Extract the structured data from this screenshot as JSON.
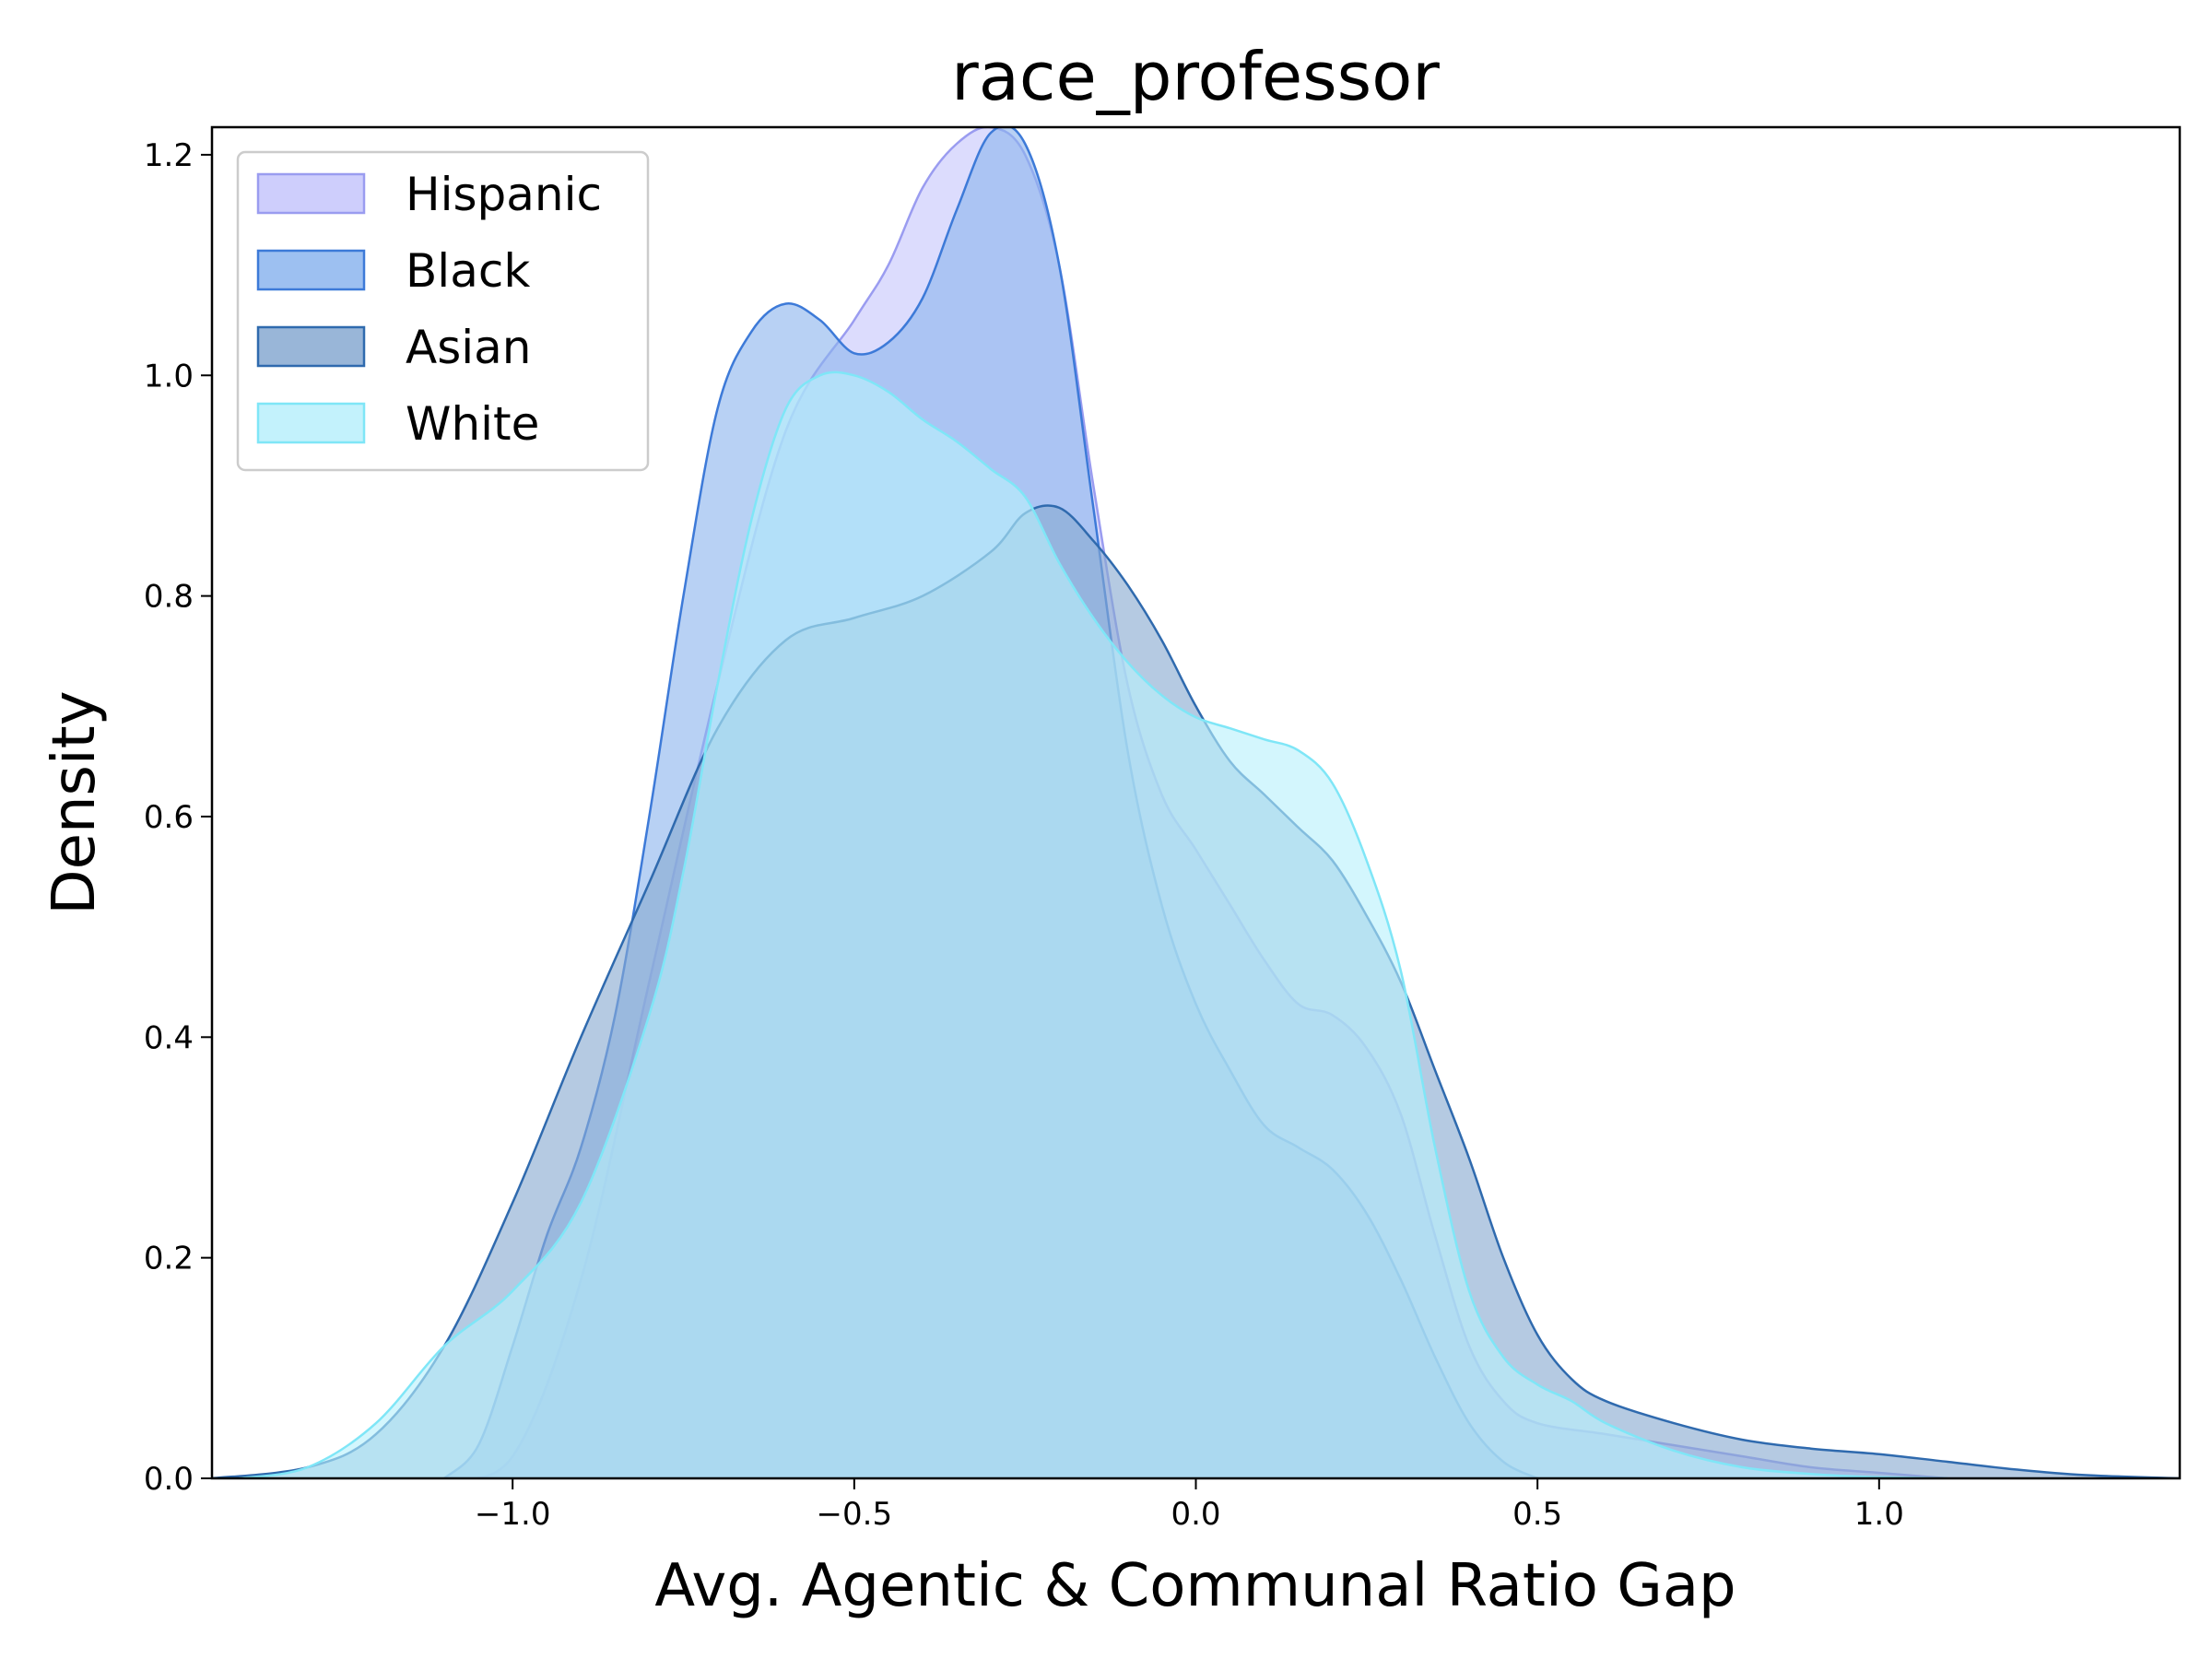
{
  "chart_data": {
    "type": "area",
    "title": "race_professor",
    "xlabel": "Avg. Agentic & Communal Ratio Gap",
    "ylabel": "Density",
    "xlim": [
      -1.44,
      1.44
    ],
    "ylim": [
      0,
      1.225
    ],
    "xticks": [
      -1.0,
      -0.5,
      0.0,
      0.5,
      1.0
    ],
    "xtick_labels": [
      "−1.0",
      "−0.5",
      "0.0",
      "0.5",
      "1.0"
    ],
    "yticks": [
      0.0,
      0.2,
      0.4,
      0.6,
      0.8,
      1.0,
      1.2
    ],
    "ytick_labels": [
      "0.0",
      "0.2",
      "0.4",
      "0.6",
      "0.8",
      "1.0",
      "1.2"
    ],
    "grid": false,
    "legend_position": "top-left",
    "series": [
      {
        "name": "Hispanic",
        "fill": "#c6c6fb",
        "stroke": "#9a9cf0",
        "points": [
          [
            -1.1,
            0.0
          ],
          [
            -1.0,
            0.02
          ],
          [
            -0.9,
            0.18
          ],
          [
            -0.8,
            0.45
          ],
          [
            -0.7,
            0.72
          ],
          [
            -0.6,
            0.95
          ],
          [
            -0.5,
            1.05
          ],
          [
            -0.45,
            1.1
          ],
          [
            -0.4,
            1.17
          ],
          [
            -0.35,
            1.21
          ],
          [
            -0.3,
            1.225
          ],
          [
            -0.25,
            1.2
          ],
          [
            -0.2,
            1.1
          ],
          [
            -0.15,
            0.9
          ],
          [
            -0.1,
            0.72
          ],
          [
            -0.05,
            0.62
          ],
          [
            0.0,
            0.57
          ],
          [
            0.05,
            0.52
          ],
          [
            0.1,
            0.47
          ],
          [
            0.15,
            0.43
          ],
          [
            0.2,
            0.42
          ],
          [
            0.25,
            0.39
          ],
          [
            0.3,
            0.33
          ],
          [
            0.35,
            0.22
          ],
          [
            0.4,
            0.12
          ],
          [
            0.45,
            0.07
          ],
          [
            0.5,
            0.05
          ],
          [
            0.6,
            0.04
          ],
          [
            0.7,
            0.03
          ],
          [
            0.8,
            0.02
          ],
          [
            0.9,
            0.01
          ],
          [
            1.0,
            0.005
          ],
          [
            1.1,
            0.0
          ]
        ]
      },
      {
        "name": "Black",
        "fill": "#8cb5ee",
        "stroke": "#3d7ad8",
        "points": [
          [
            -1.1,
            0.0
          ],
          [
            -1.05,
            0.03
          ],
          [
            -1.0,
            0.12
          ],
          [
            -0.95,
            0.22
          ],
          [
            -0.9,
            0.3
          ],
          [
            -0.85,
            0.42
          ],
          [
            -0.8,
            0.6
          ],
          [
            -0.75,
            0.8
          ],
          [
            -0.7,
            0.97
          ],
          [
            -0.65,
            1.04
          ],
          [
            -0.6,
            1.065
          ],
          [
            -0.55,
            1.05
          ],
          [
            -0.5,
            1.02
          ],
          [
            -0.45,
            1.03
          ],
          [
            -0.4,
            1.07
          ],
          [
            -0.35,
            1.15
          ],
          [
            -0.3,
            1.22
          ],
          [
            -0.25,
            1.21
          ],
          [
            -0.2,
            1.1
          ],
          [
            -0.15,
            0.88
          ],
          [
            -0.1,
            0.66
          ],
          [
            -0.05,
            0.52
          ],
          [
            0.0,
            0.43
          ],
          [
            0.05,
            0.37
          ],
          [
            0.1,
            0.32
          ],
          [
            0.15,
            0.3
          ],
          [
            0.2,
            0.28
          ],
          [
            0.25,
            0.24
          ],
          [
            0.3,
            0.18
          ],
          [
            0.35,
            0.11
          ],
          [
            0.4,
            0.05
          ],
          [
            0.45,
            0.015
          ],
          [
            0.5,
            0.0
          ]
        ]
      },
      {
        "name": "Asian",
        "fill": "#87a9d1",
        "stroke": "#2f6aae",
        "points": [
          [
            -1.44,
            0.0
          ],
          [
            -1.3,
            0.01
          ],
          [
            -1.2,
            0.04
          ],
          [
            -1.1,
            0.12
          ],
          [
            -1.0,
            0.25
          ],
          [
            -0.9,
            0.4
          ],
          [
            -0.8,
            0.54
          ],
          [
            -0.7,
            0.68
          ],
          [
            -0.6,
            0.76
          ],
          [
            -0.5,
            0.78
          ],
          [
            -0.4,
            0.8
          ],
          [
            -0.3,
            0.84
          ],
          [
            -0.25,
            0.875
          ],
          [
            -0.2,
            0.88
          ],
          [
            -0.15,
            0.85
          ],
          [
            -0.1,
            0.81
          ],
          [
            -0.05,
            0.76
          ],
          [
            0.0,
            0.7
          ],
          [
            0.05,
            0.65
          ],
          [
            0.1,
            0.62
          ],
          [
            0.15,
            0.59
          ],
          [
            0.2,
            0.56
          ],
          [
            0.25,
            0.51
          ],
          [
            0.3,
            0.45
          ],
          [
            0.35,
            0.37
          ],
          [
            0.4,
            0.29
          ],
          [
            0.45,
            0.2
          ],
          [
            0.5,
            0.13
          ],
          [
            0.55,
            0.09
          ],
          [
            0.6,
            0.07
          ],
          [
            0.7,
            0.05
          ],
          [
            0.8,
            0.035
          ],
          [
            0.9,
            0.027
          ],
          [
            1.0,
            0.022
          ],
          [
            1.1,
            0.015
          ],
          [
            1.2,
            0.008
          ],
          [
            1.3,
            0.003
          ],
          [
            1.44,
            0.0
          ]
        ]
      },
      {
        "name": "White",
        "fill": "#b8f0fb",
        "stroke": "#7fe6f7",
        "points": [
          [
            -1.4,
            0.0
          ],
          [
            -1.3,
            0.01
          ],
          [
            -1.2,
            0.05
          ],
          [
            -1.1,
            0.12
          ],
          [
            -1.0,
            0.17
          ],
          [
            -0.9,
            0.25
          ],
          [
            -0.8,
            0.42
          ],
          [
            -0.75,
            0.55
          ],
          [
            -0.7,
            0.72
          ],
          [
            -0.65,
            0.87
          ],
          [
            -0.6,
            0.97
          ],
          [
            -0.55,
            1.0
          ],
          [
            -0.5,
            1.0
          ],
          [
            -0.45,
            0.985
          ],
          [
            -0.4,
            0.96
          ],
          [
            -0.35,
            0.94
          ],
          [
            -0.3,
            0.915
          ],
          [
            -0.25,
            0.89
          ],
          [
            -0.2,
            0.83
          ],
          [
            -0.15,
            0.78
          ],
          [
            -0.1,
            0.74
          ],
          [
            -0.05,
            0.71
          ],
          [
            0.0,
            0.69
          ],
          [
            0.05,
            0.68
          ],
          [
            0.1,
            0.67
          ],
          [
            0.15,
            0.66
          ],
          [
            0.2,
            0.63
          ],
          [
            0.25,
            0.56
          ],
          [
            0.3,
            0.46
          ],
          [
            0.35,
            0.3
          ],
          [
            0.4,
            0.17
          ],
          [
            0.45,
            0.11
          ],
          [
            0.5,
            0.085
          ],
          [
            0.55,
            0.07
          ],
          [
            0.6,
            0.05
          ],
          [
            0.7,
            0.025
          ],
          [
            0.8,
            0.01
          ],
          [
            0.9,
            0.004
          ],
          [
            1.0,
            0.001
          ],
          [
            1.1,
            0.0
          ]
        ]
      }
    ],
    "overlap_fill": "#74bde7"
  }
}
